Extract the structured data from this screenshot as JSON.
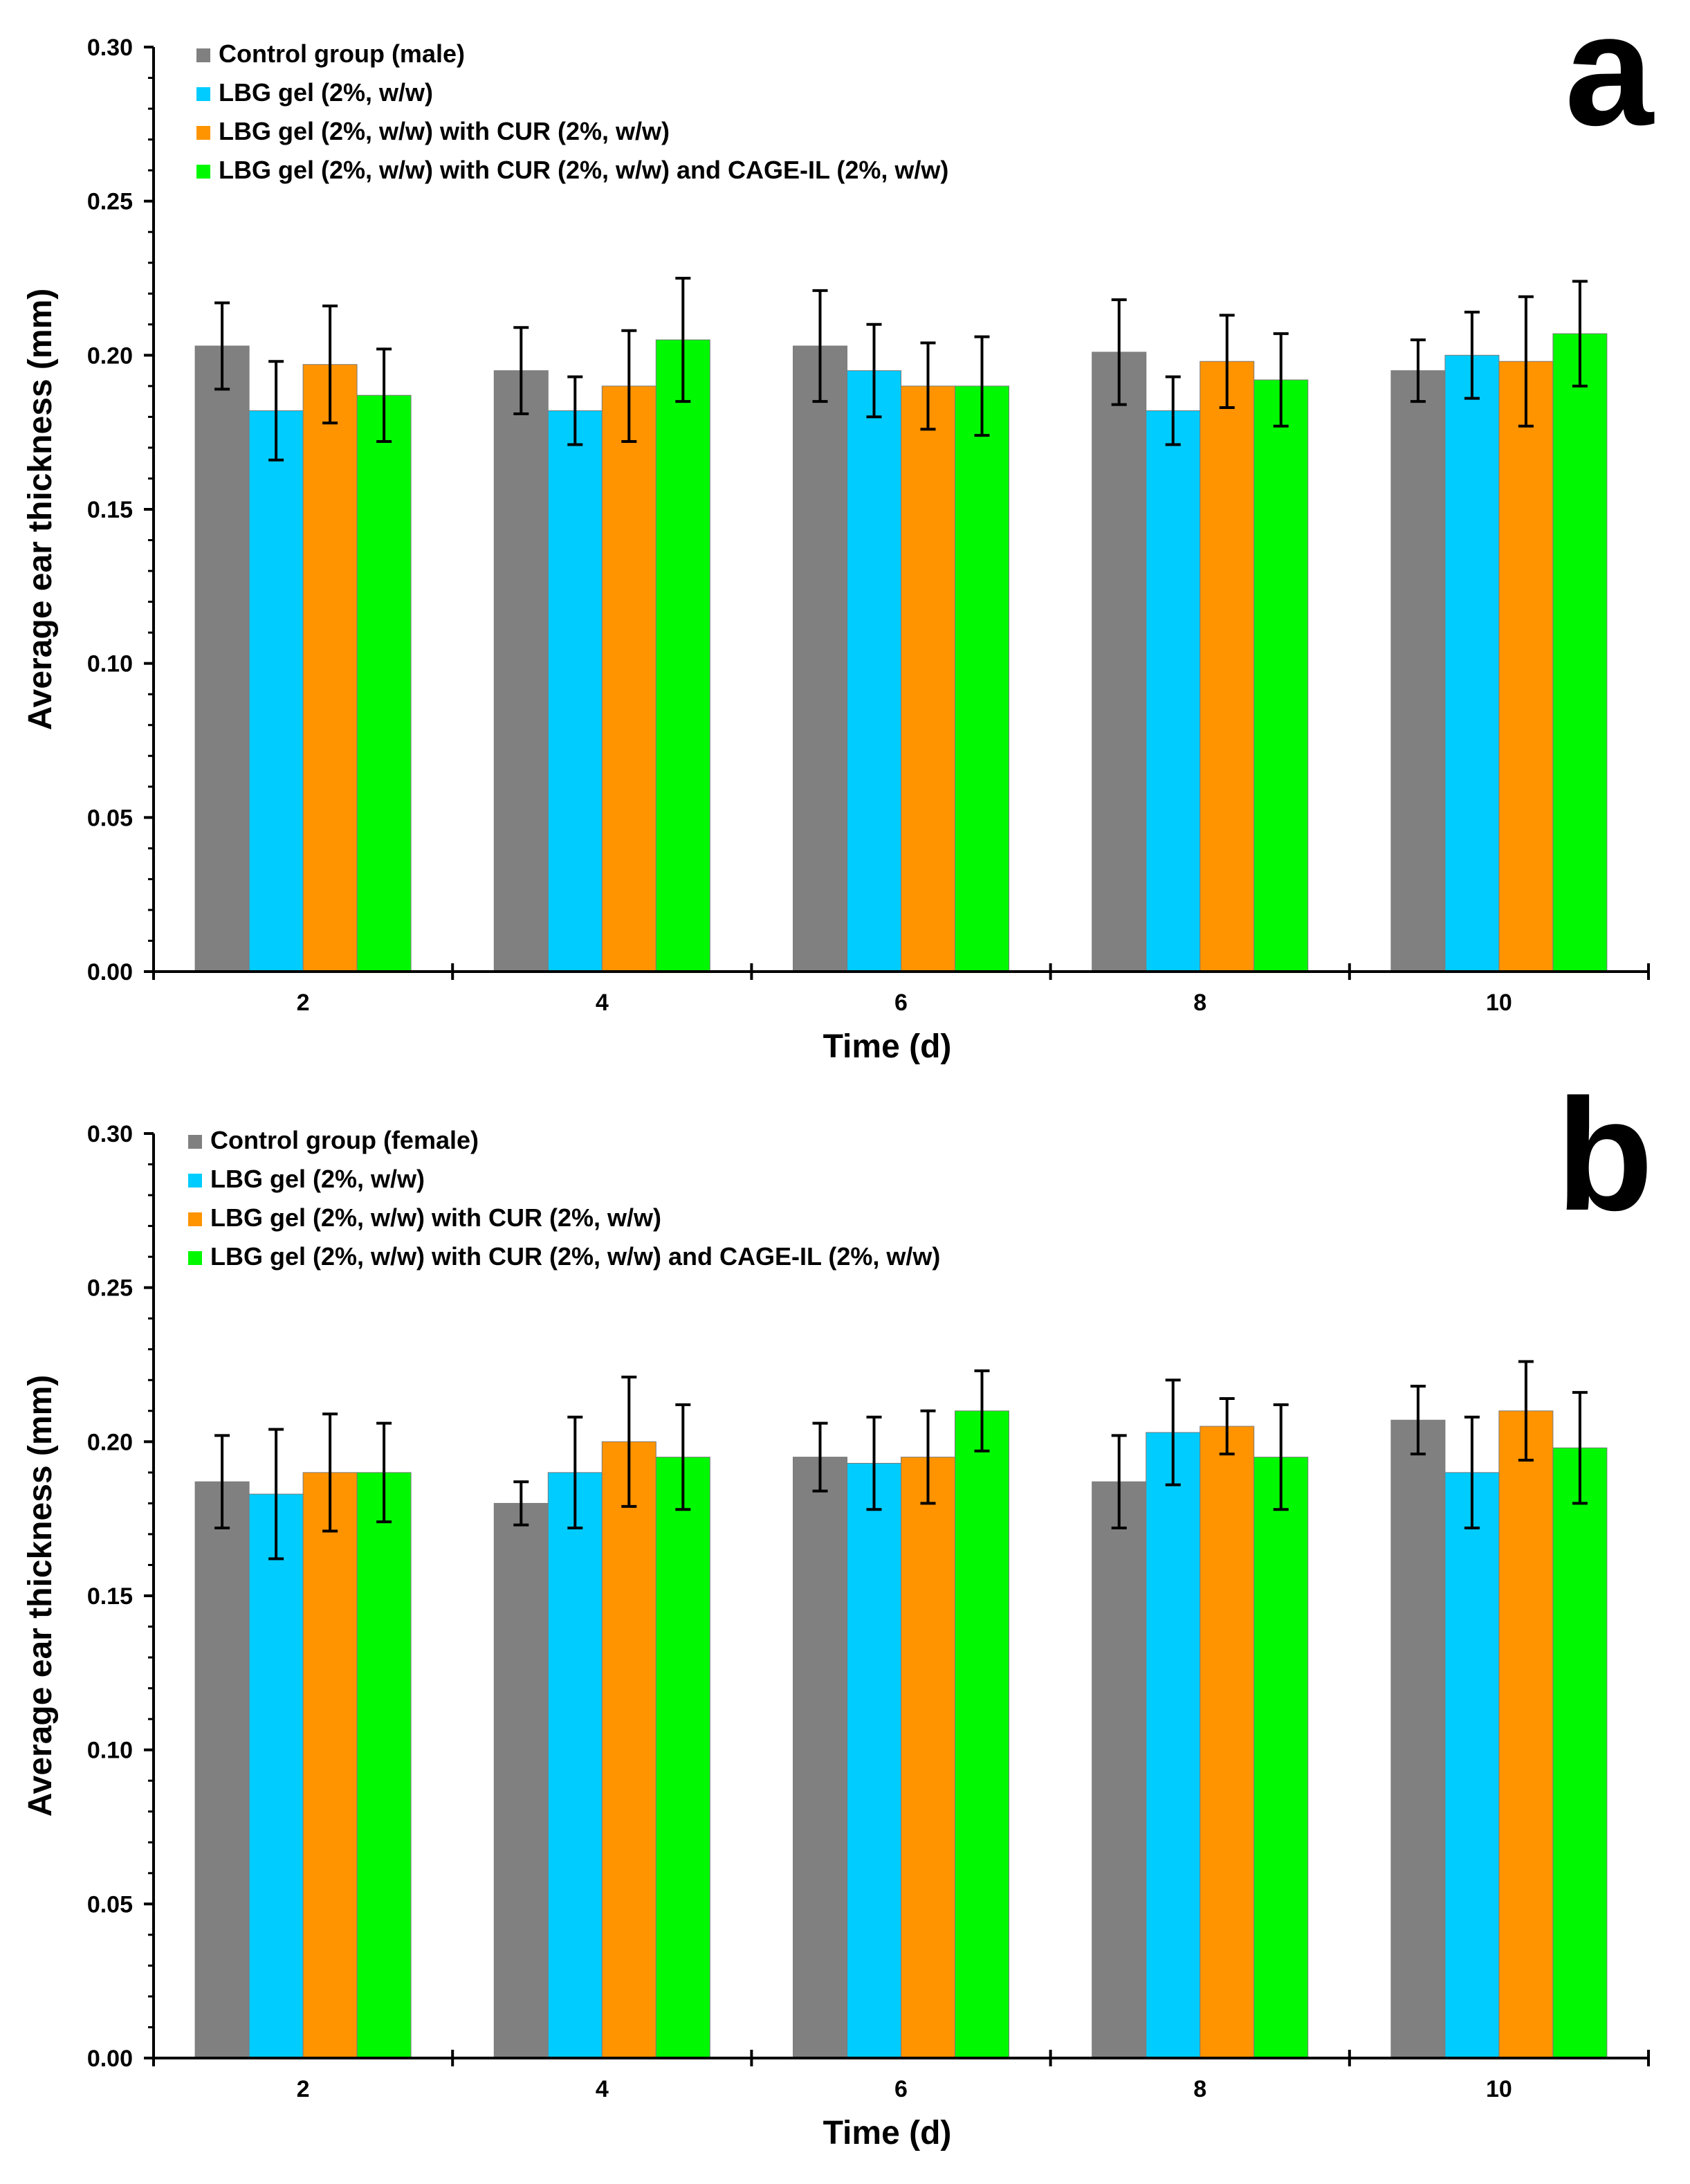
{
  "chart_data": [
    {
      "type": "bar",
      "panel_label": "a",
      "categories": [
        "2",
        "4",
        "6",
        "8",
        "10"
      ],
      "xlabel": "Time (d)",
      "ylabel": "Average ear thickness (mm)",
      "ylim": [
        0,
        0.3
      ],
      "yticks": [
        "0.00",
        "0.05",
        "0.10",
        "0.15",
        "0.20",
        "0.25",
        "0.30"
      ],
      "legend_position": "top-left",
      "series": [
        {
          "name": "Control group (male)",
          "color": "#808080",
          "values": [
            0.203,
            0.195,
            0.203,
            0.201,
            0.195
          ],
          "errors": [
            0.014,
            0.014,
            0.018,
            0.017,
            0.01
          ]
        },
        {
          "name": "LBG gel (2%, w/w)",
          "color": "#00CCFF",
          "values": [
            0.182,
            0.182,
            0.195,
            0.182,
            0.2
          ],
          "errors": [
            0.016,
            0.011,
            0.015,
            0.011,
            0.014
          ]
        },
        {
          "name": "LBG gel (2%, w/w) with CUR (2%, w/w)",
          "color": "#FF9300",
          "values": [
            0.197,
            0.19,
            0.19,
            0.198,
            0.198
          ],
          "errors": [
            0.019,
            0.018,
            0.014,
            0.015,
            0.021
          ]
        },
        {
          "name": "LBG gel (2%, w/w) with CUR (2%, w/w) and CAGE-IL (2%, w/w)",
          "color": "#00F900",
          "values": [
            0.187,
            0.205,
            0.19,
            0.192,
            0.207
          ],
          "errors": [
            0.015,
            0.02,
            0.016,
            0.015,
            0.017
          ]
        }
      ]
    },
    {
      "type": "bar",
      "panel_label": "b",
      "categories": [
        "2",
        "4",
        "6",
        "8",
        "10"
      ],
      "xlabel": "Time (d)",
      "ylabel": "Average ear thickness (mm)",
      "ylim": [
        0,
        0.3
      ],
      "yticks": [
        "0.00",
        "0.05",
        "0.10",
        "0.15",
        "0.20",
        "0.25",
        "0.30"
      ],
      "legend_position": "top-left",
      "series": [
        {
          "name": "Control group (female)",
          "color": "#808080",
          "values": [
            0.187,
            0.18,
            0.195,
            0.187,
            0.207
          ],
          "errors": [
            0.015,
            0.007,
            0.011,
            0.015,
            0.011
          ]
        },
        {
          "name": "LBG gel (2%, w/w)",
          "color": "#00CCFF",
          "values": [
            0.183,
            0.19,
            0.193,
            0.203,
            0.19
          ],
          "errors": [
            0.021,
            0.018,
            0.015,
            0.017,
            0.018
          ]
        },
        {
          "name": "LBG gel (2%, w/w) with CUR (2%, w/w)",
          "color": "#FF9300",
          "values": [
            0.19,
            0.2,
            0.195,
            0.205,
            0.21
          ],
          "errors": [
            0.019,
            0.021,
            0.015,
            0.009,
            0.016
          ]
        },
        {
          "name": "LBG gel (2%, w/w) with CUR (2%, w/w) and CAGE-IL (2%, w/w)",
          "color": "#00F900",
          "values": [
            0.19,
            0.195,
            0.21,
            0.195,
            0.198
          ],
          "errors": [
            0.016,
            0.017,
            0.013,
            0.017,
            0.018
          ]
        }
      ]
    }
  ]
}
